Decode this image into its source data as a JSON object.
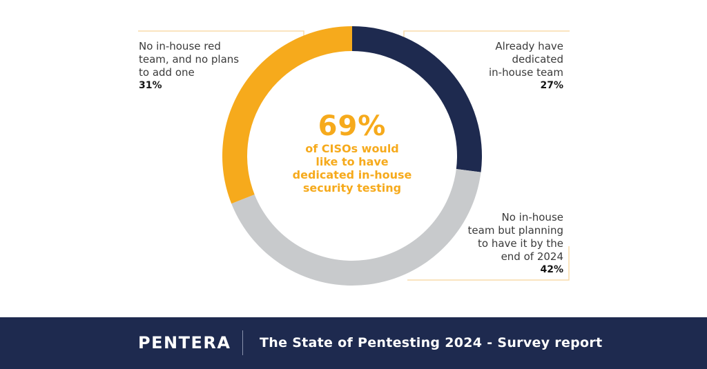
{
  "chart_data": {
    "type": "pie",
    "style": "donut",
    "title": "",
    "slices": [
      {
        "name": "Already have dedicated in-house team",
        "value": 27,
        "label": "27%",
        "color": "#1e2a4f"
      },
      {
        "name": "No in-house team but planning to have it by the end of 2024",
        "value": 42,
        "label": "42%",
        "color": "#c8cacc"
      },
      {
        "name": "No in-house red team, and no plans to add one",
        "value": 31,
        "label": "31%",
        "color": "#f6aa1c"
      }
    ],
    "start": "12 o'clock",
    "direction": "clockwise",
    "center_value": "69%",
    "center_caption": [
      "of CISOs would",
      "like to have",
      "dedicated in-house",
      "security testing"
    ],
    "leader_color": "#f9dcaa"
  },
  "labels": {
    "left": {
      "lines": [
        "No in-house red",
        "team, and no plans",
        "to add one"
      ],
      "pct": "31%"
    },
    "right_top": {
      "lines": [
        "Already have",
        "dedicated",
        "in-house team"
      ],
      "pct": "27%"
    },
    "right_bottom": {
      "lines": [
        "No in-house",
        "team but planning",
        "to have it by the",
        "end of 2024"
      ],
      "pct": "42%"
    }
  },
  "footer": {
    "brand": "PENTERA",
    "title": "The State of Pentesting 2024 - Survey report",
    "background": "#1e2a4f",
    "logo_icon": "pentera-logo-icon"
  }
}
